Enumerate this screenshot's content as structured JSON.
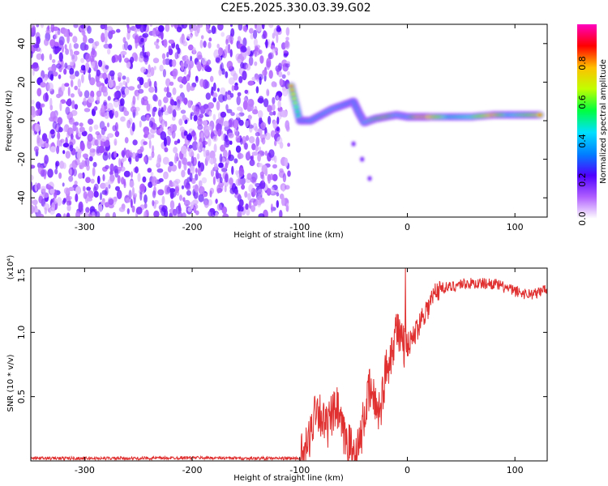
{
  "chart_data": [
    {
      "type": "heatmap",
      "title": "C2E5.2025.330.03.39.G02",
      "xlabel": "Height of straight line (km)",
      "ylabel": "Frequency (Hz)",
      "xlim": [
        -350,
        130
      ],
      "ylim": [
        -50,
        50
      ],
      "xticks": [
        -300,
        -200,
        -100,
        0,
        100
      ],
      "yticks": [
        -40,
        -20,
        0,
        20,
        40
      ],
      "colorbar": {
        "label": "Normalized spectral amplitude",
        "range": [
          0.0,
          1.0
        ],
        "ticks": [
          0.0,
          0.2,
          0.4,
          0.6,
          0.8
        ],
        "colors": [
          "#ffffff",
          "#b060ff",
          "#5000ff",
          "#0080ff",
          "#00e0ff",
          "#00ff40",
          "#c0ff00",
          "#ffc000",
          "#ff0000",
          "#ff00c0"
        ]
      },
      "noise_region_km": [
        -350,
        -110
      ],
      "signal_track": [
        {
          "x": -108,
          "y": 18,
          "v": 0.85
        },
        {
          "x": -100,
          "y": 0,
          "v": 0.45
        },
        {
          "x": -90,
          "y": 0,
          "v": 0.5
        },
        {
          "x": -80,
          "y": 3,
          "v": 0.5
        },
        {
          "x": -70,
          "y": 6,
          "v": 0.55
        },
        {
          "x": -60,
          "y": 8,
          "v": 0.5
        },
        {
          "x": -50,
          "y": 10,
          "v": 0.45
        },
        {
          "x": -45,
          "y": 4,
          "v": 0.5
        },
        {
          "x": -40,
          "y": -1,
          "v": 0.55
        },
        {
          "x": -30,
          "y": 1,
          "v": 0.7
        },
        {
          "x": -20,
          "y": 2,
          "v": 0.8
        },
        {
          "x": -10,
          "y": 3,
          "v": 0.6
        },
        {
          "x": 0,
          "y": 2,
          "v": 0.55
        },
        {
          "x": 10,
          "y": 2,
          "v": 0.9
        },
        {
          "x": 20,
          "y": 2,
          "v": 0.95
        },
        {
          "x": 40,
          "y": 2,
          "v": 0.5
        },
        {
          "x": 60,
          "y": 2,
          "v": 0.6
        },
        {
          "x": 80,
          "y": 3,
          "v": 0.95
        },
        {
          "x": 95,
          "y": 3,
          "v": 0.55
        },
        {
          "x": 110,
          "y": 3,
          "v": 0.7
        },
        {
          "x": 125,
          "y": 3,
          "v": 0.9
        }
      ],
      "faint_branch": [
        {
          "x": -50,
          "y": -12
        },
        {
          "x": -42,
          "y": -20
        },
        {
          "x": -35,
          "y": -30
        }
      ]
    },
    {
      "type": "line",
      "xlabel": "Height of straight line (km)",
      "ylabel": "SNR (10 * v/v)",
      "y_scale_label": "(x10⁴)",
      "xlim": [
        -350,
        130
      ],
      "ylim": [
        0,
        1.5
      ],
      "xticks": [
        -300,
        -200,
        -100,
        0,
        100
      ],
      "yticks": [
        0.5,
        1.0,
        1.5
      ],
      "series": [
        {
          "name": "SNR",
          "color": "#e03030",
          "x": [
            -350,
            -300,
            -250,
            -200,
            -150,
            -100,
            -95,
            -90,
            -85,
            -80,
            -75,
            -70,
            -65,
            -60,
            -55,
            -50,
            -45,
            -40,
            -35,
            -30,
            -25,
            -20,
            -15,
            -10,
            -5,
            0,
            5,
            10,
            15,
            20,
            25,
            30,
            40,
            50,
            60,
            70,
            80,
            90,
            100,
            110,
            120,
            130
          ],
          "y": [
            0.02,
            0.02,
            0.02,
            0.025,
            0.02,
            0.02,
            0.06,
            0.2,
            0.45,
            0.35,
            0.25,
            0.35,
            0.4,
            0.2,
            0.15,
            0.05,
            0.1,
            0.35,
            0.55,
            0.45,
            0.4,
            0.7,
            0.85,
            1.05,
            0.9,
            0.9,
            0.95,
            1.05,
            1.15,
            1.2,
            1.3,
            1.35,
            1.35,
            1.38,
            1.38,
            1.38,
            1.38,
            1.35,
            1.32,
            1.3,
            1.3,
            1.35
          ]
        }
      ]
    }
  ]
}
